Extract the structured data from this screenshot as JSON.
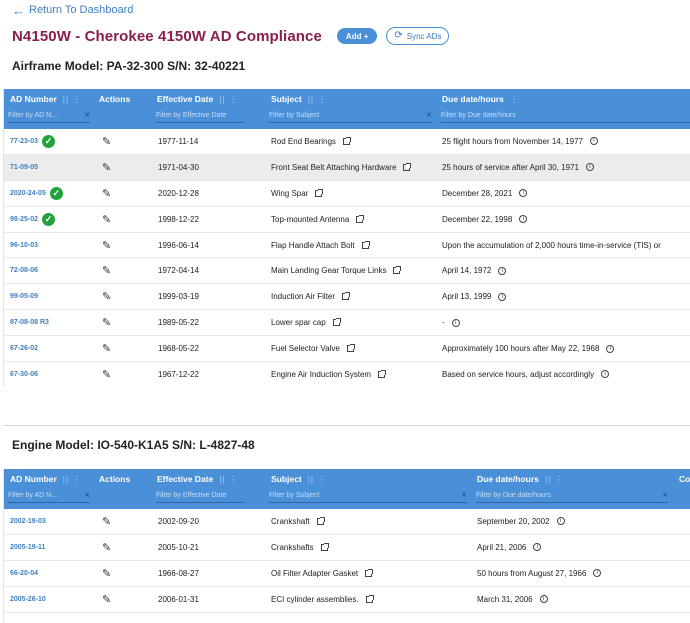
{
  "nav": {
    "back_label": "Return To Dashboard"
  },
  "header": {
    "title": "N4150W - Cherokee 4150W AD Compliance",
    "add_label": "Add +",
    "sync_label": "Sync ADs"
  },
  "colors": {
    "title": "#8a1f4f",
    "accent": "#4a90d9",
    "link": "#3f7fc0",
    "check": "#22a33a"
  },
  "airframe": {
    "title": "Airframe Model: PA-32-300 S/N: 32-40221",
    "columns": [
      {
        "label": "AD Number",
        "filter": "Filter by AD N..."
      },
      {
        "label": "Actions",
        "filter": ""
      },
      {
        "label": "Effective Date",
        "filter": "Filter by Effective Date"
      },
      {
        "label": "Subject",
        "filter": "Filter by Subject"
      },
      {
        "label": "Due date/hours",
        "filter": "Filter by Due date/hours"
      }
    ],
    "rows": [
      {
        "ad": "77-23-03",
        "complied": true,
        "date": "1977-11-14",
        "subject": "Rod End Bearings",
        "due": "25 flight hours from November 14, 1977"
      },
      {
        "ad": "71-09-05",
        "complied": false,
        "date": "1971-04-30",
        "subject": "Front Seat Belt Attaching Hardware",
        "due": "25 hours of service after April 30, 1971"
      },
      {
        "ad": "2020-24-05",
        "complied": true,
        "date": "2020-12-28",
        "subject": "Wing Spar",
        "due": "December 28, 2021"
      },
      {
        "ad": "98-25-02",
        "complied": true,
        "date": "1998-12-22",
        "subject": "Top-mounted Antenna",
        "due": "December 22, 1998"
      },
      {
        "ad": "96-10-03",
        "complied": false,
        "date": "1996-06-14",
        "subject": "Flap Handle Attach Bolt",
        "due": "Upon the accumulation of 2,000 hours time-in-service (TIS) or"
      },
      {
        "ad": "72-08-06",
        "complied": false,
        "date": "1972-04-14",
        "subject": "Main Landing Gear Torque Links",
        "due": "April 14, 1972"
      },
      {
        "ad": "99-05-09",
        "complied": false,
        "date": "1999-03-19",
        "subject": "Induction Air Filter",
        "due": "April 13, 1999"
      },
      {
        "ad": "87-08-08 R3",
        "complied": false,
        "date": "1989-05-22",
        "subject": "Lower spar cap",
        "due": "-"
      },
      {
        "ad": "67-26-02",
        "complied": false,
        "date": "1968-05-22",
        "subject": "Fuel Selector Valve",
        "due": "Approximately 100 hours after May 22, 1968"
      },
      {
        "ad": "67-30-06",
        "complied": false,
        "date": "1967-12-22",
        "subject": "Engine Air Induction System",
        "due": "Based on service hours, adjust accordingly"
      }
    ]
  },
  "engine": {
    "title": "Engine Model: IO-540-K1A5 S/N: L-4827-48",
    "columns": [
      {
        "label": "AD Number",
        "filter": "Filter by AD N..."
      },
      {
        "label": "Actions",
        "filter": ""
      },
      {
        "label": "Effective Date",
        "filter": "Filter by Effective Date"
      },
      {
        "label": "Subject",
        "filter": "Filter by Subject"
      },
      {
        "label": "Due date/hours",
        "filter": "Filter by Due date/hours"
      },
      {
        "label": "Co",
        "filter": ""
      }
    ],
    "rows": [
      {
        "ad": "2002-19-03",
        "date": "2002-09-20",
        "subject": "Crankshaft",
        "due": "September 20, 2002"
      },
      {
        "ad": "2005-19-11",
        "date": "2005-10-21",
        "subject": "Crankshafts",
        "due": "April 21, 2006"
      },
      {
        "ad": "66-20-04",
        "date": "1966-08-27",
        "subject": "Oil Filter Adapter Gasket",
        "due": "50 hours from August 27, 1966"
      },
      {
        "ad": "2005-26-10",
        "date": "2006-01-31",
        "subject": "ECI cylinder assemblies.",
        "due": "March 31, 2006"
      }
    ]
  }
}
